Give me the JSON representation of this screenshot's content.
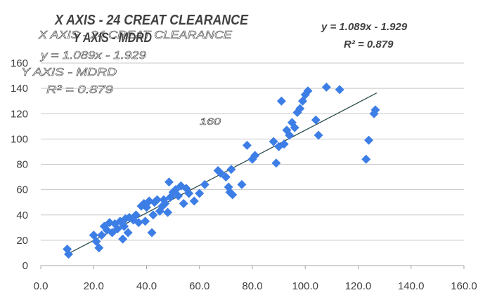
{
  "chart_data": {
    "type": "scatter",
    "title": "X AXIS - 24 CREAT CLEARANCE",
    "subtitle": "Y AXIS - MDRD",
    "title_ghost_lines": [
      "X AXIS - 24 CREAT CLEARANCE",
      "y = 1.089x - 1.929",
      "Y AXIS - MDRD",
      "R² = 0.879"
    ],
    "ghost_label": "160",
    "equation": "y = 1.089x - 1.929",
    "r_squared": "R² = 0.879",
    "trendline": {
      "slope": 1.089,
      "intercept": -1.929,
      "x_start": 10,
      "x_end": 127
    },
    "xlim": [
      0,
      160
    ],
    "ylim": [
      0,
      160
    ],
    "x_ticks": [
      "0.0",
      "20.0",
      "40.0",
      "60.0",
      "80.0",
      "100.0",
      "120.0",
      "140.0",
      "160.0"
    ],
    "y_ticks": [
      "0",
      "20",
      "40",
      "60",
      "80",
      "100",
      "120",
      "140",
      "160"
    ],
    "grid": "horizontal",
    "marker": "diamond",
    "colors": {
      "marker": "#3d7ee6",
      "trendline": "#2f4f4f",
      "grid": "#c8c8c8",
      "text": "#404040"
    },
    "points": [
      [
        10,
        13
      ],
      [
        10.5,
        9
      ],
      [
        20,
        24
      ],
      [
        21,
        19
      ],
      [
        22,
        14
      ],
      [
        23,
        24
      ],
      [
        24,
        31
      ],
      [
        25,
        28
      ],
      [
        26,
        34
      ],
      [
        27,
        26
      ],
      [
        28,
        33
      ],
      [
        29,
        29
      ],
      [
        30,
        35
      ],
      [
        31,
        21
      ],
      [
        31.5,
        31
      ],
      [
        32,
        37
      ],
      [
        33,
        26
      ],
      [
        33.5,
        38
      ],
      [
        35,
        36
      ],
      [
        36,
        40
      ],
      [
        37,
        34
      ],
      [
        38,
        47
      ],
      [
        39,
        49
      ],
      [
        39.5,
        35
      ],
      [
        40,
        46
      ],
      [
        41,
        51
      ],
      [
        42,
        26
      ],
      [
        42.5,
        40
      ],
      [
        43,
        50
      ],
      [
        44,
        52
      ],
      [
        45,
        43
      ],
      [
        46,
        47
      ],
      [
        46.5,
        52
      ],
      [
        47,
        49
      ],
      [
        48,
        42
      ],
      [
        48.5,
        66
      ],
      [
        49,
        54
      ],
      [
        50,
        58
      ],
      [
        51,
        60
      ],
      [
        52,
        55
      ],
      [
        53,
        63
      ],
      [
        54,
        49
      ],
      [
        55,
        61
      ],
      [
        56,
        57
      ],
      [
        58,
        51
      ],
      [
        60,
        57
      ],
      [
        62,
        64
      ],
      [
        67,
        75
      ],
      [
        68,
        73
      ],
      [
        70,
        70
      ],
      [
        71,
        62
      ],
      [
        72,
        76
      ],
      [
        71.5,
        58
      ],
      [
        72.5,
        56
      ],
      [
        76,
        64
      ],
      [
        78,
        95
      ],
      [
        80,
        84
      ],
      [
        81,
        87
      ],
      [
        88,
        98
      ],
      [
        89,
        81
      ],
      [
        90,
        94
      ],
      [
        91,
        130
      ],
      [
        92,
        96
      ],
      [
        93,
        107
      ],
      [
        94,
        103
      ],
      [
        95,
        113
      ],
      [
        96,
        109
      ],
      [
        97,
        121
      ],
      [
        98,
        124
      ],
      [
        99,
        130
      ],
      [
        100,
        135
      ],
      [
        101,
        138
      ],
      [
        104,
        115
      ],
      [
        105,
        103
      ],
      [
        108,
        141
      ],
      [
        113,
        139
      ],
      [
        123,
        84
      ],
      [
        124,
        99
      ],
      [
        126,
        120
      ],
      [
        126.5,
        123
      ]
    ]
  }
}
